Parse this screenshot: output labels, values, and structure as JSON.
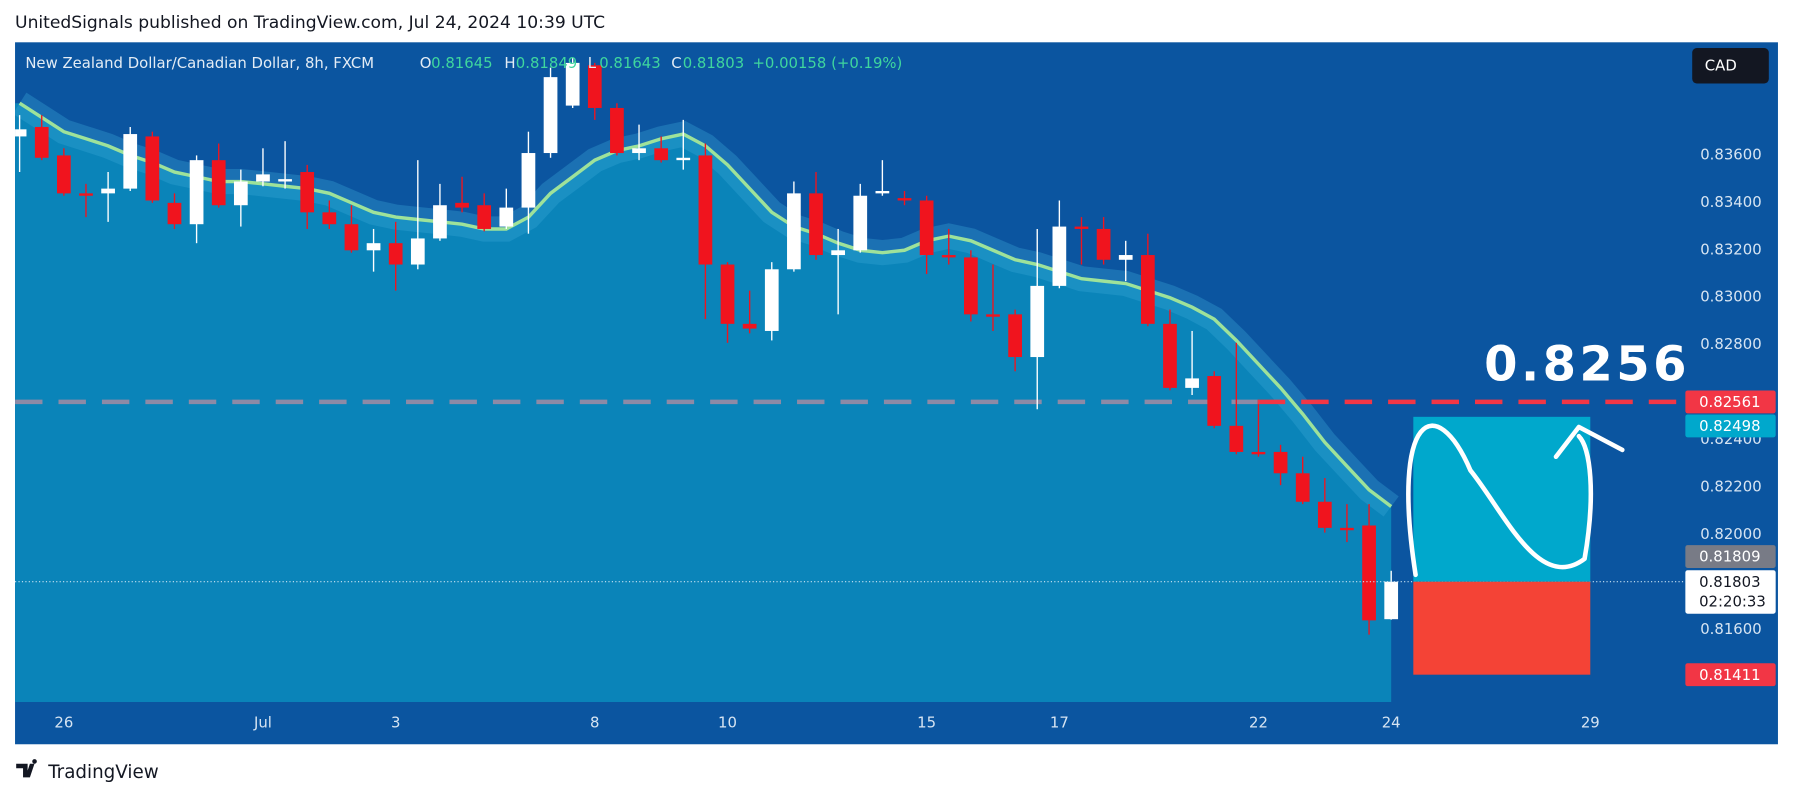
{
  "header": "UnitedSignals published on TradingView.com, Jul 24, 2024 10:39 UTC",
  "footer": "TradingView",
  "currency": "CAD",
  "ohlc_letters": [
    "O",
    "H",
    "L",
    "C"
  ],
  "change_label": "+0.00158 (+0.19%)",
  "annotation": "0.8256",
  "countdown": "02:20:33",
  "levels": {
    "resistance": 0.82561,
    "target": 0.82498,
    "prev_close": 0.81809,
    "stop": 0.81411
  },
  "chart_data": {
    "type": "candlestick",
    "title": "New Zealand Dollar/Canadian Dollar, 8h, FXCM",
    "up_color": "#ffffff",
    "down_color": "#f0141e",
    "categories": [
      null,
      null,
      "26",
      null,
      null,
      null,
      null,
      null,
      null,
      null,
      null,
      "Jul",
      null,
      null,
      null,
      null,
      null,
      "3",
      null,
      null,
      null,
      null,
      null,
      null,
      null,
      null,
      "8",
      null,
      null,
      null,
      null,
      null,
      "10",
      null,
      null,
      null,
      null,
      null,
      null,
      null,
      null,
      "15",
      null,
      null,
      null,
      null,
      null,
      "17",
      null,
      null,
      null,
      null,
      null,
      null,
      null,
      null,
      "22",
      null,
      null,
      null,
      null,
      null,
      "24",
      null,
      null,
      null,
      null,
      null,
      null,
      null,
      null,
      "29",
      null,
      null,
      null,
      null
    ],
    "open": [
      0.8368,
      0.8372,
      0.836,
      0.8344,
      0.8344,
      0.8346,
      0.8368,
      0.834,
      0.8331,
      0.8358,
      0.8339,
      0.8349,
      0.8349,
      0.8353,
      0.8336,
      0.8331,
      0.832,
      0.8323,
      0.8314,
      0.8325,
      0.834,
      0.8339,
      0.833,
      0.8338,
      0.8361,
      0.8381,
      0.8398,
      0.838,
      0.8361,
      0.8363,
      0.8358,
      0.836,
      0.8314,
      0.8289,
      0.8286,
      0.8312,
      0.8344,
      0.8318,
      0.832,
      0.8344,
      0.8342,
      0.8341,
      0.8318,
      0.8317,
      0.8293,
      0.8293,
      0.8275,
      0.8305,
      0.833,
      0.8329,
      0.8316,
      0.8318,
      0.8289,
      0.8262,
      0.8267,
      0.8246,
      0.8235,
      0.8235,
      0.8226,
      0.8214,
      0.8203,
      0.8204,
      0.81645,
      null,
      null,
      null,
      null,
      null,
      null,
      null,
      null,
      null,
      null,
      null,
      null,
      null
    ],
    "high": [
      0.8377,
      0.8377,
      0.8363,
      0.8348,
      0.8353,
      0.8372,
      0.837,
      0.8344,
      0.836,
      0.8365,
      0.8354,
      0.8363,
      0.8366,
      0.8356,
      0.8341,
      0.8339,
      0.8329,
      0.8332,
      0.8358,
      0.8348,
      0.8351,
      0.8344,
      0.8346,
      0.837,
      0.8397,
      0.8401,
      0.8399,
      0.8382,
      0.8373,
      0.8368,
      0.8375,
      0.8365,
      0.8315,
      0.8303,
      0.8315,
      0.8349,
      0.8353,
      0.8329,
      0.8348,
      0.8358,
      0.8345,
      0.8343,
      0.8329,
      0.832,
      0.8314,
      0.8295,
      0.8329,
      0.8341,
      0.8334,
      0.8334,
      0.8324,
      0.8327,
      0.8295,
      0.8286,
      0.8269,
      0.8281,
      0.8257,
      0.8238,
      0.8233,
      0.8224,
      0.8213,
      0.8213,
      0.81849,
      null,
      null,
      null,
      null,
      null,
      null,
      null,
      null,
      null,
      null,
      null,
      null,
      null
    ],
    "low": [
      0.8353,
      0.8358,
      0.8343,
      0.8334,
      0.8332,
      0.8345,
      0.834,
      0.8329,
      0.8323,
      0.8338,
      0.833,
      0.8347,
      0.8346,
      0.8329,
      0.8329,
      0.8319,
      0.8311,
      0.8303,
      0.8312,
      0.8324,
      0.8336,
      0.8328,
      0.8329,
      0.8327,
      0.8359,
      0.838,
      0.8375,
      0.836,
      0.8358,
      0.8357,
      0.8354,
      0.8291,
      0.8281,
      0.8285,
      0.8282,
      0.8311,
      0.8316,
      0.8293,
      0.8319,
      0.8343,
      0.8339,
      0.831,
      0.8314,
      0.829,
      0.8286,
      0.8269,
      0.8253,
      0.8304,
      0.8314,
      0.8314,
      0.8307,
      0.8288,
      0.8261,
      0.8259,
      0.8245,
      0.8234,
      0.8233,
      0.8221,
      0.8213,
      0.8201,
      0.8197,
      0.8158,
      0.81643,
      null,
      null,
      null,
      null,
      null,
      null,
      null,
      null,
      null,
      null,
      null,
      null,
      null
    ],
    "close": [
      0.8371,
      0.8359,
      0.8344,
      0.8343,
      0.8346,
      0.8369,
      0.8341,
      0.8331,
      0.8358,
      0.8339,
      0.8349,
      0.8352,
      0.835,
      0.8336,
      0.8331,
      0.832,
      0.8323,
      0.8314,
      0.8325,
      0.8339,
      0.8338,
      0.8329,
      0.8338,
      0.8361,
      0.8393,
      0.8399,
      0.838,
      0.8361,
      0.8363,
      0.8358,
      0.8359,
      0.8314,
      0.8289,
      0.8287,
      0.8312,
      0.8344,
      0.8318,
      0.832,
      0.8343,
      0.8345,
      0.8341,
      0.8318,
      0.8317,
      0.8293,
      0.8292,
      0.8275,
      0.8305,
      0.833,
      0.8329,
      0.8316,
      0.8318,
      0.8289,
      0.8262,
      0.8266,
      0.8246,
      0.8235,
      0.8234,
      0.8226,
      0.8214,
      0.8203,
      0.8202,
      0.8164,
      0.81803,
      null,
      null,
      null,
      null,
      null,
      null,
      null,
      null,
      null,
      null,
      null,
      null,
      null
    ],
    "ema": {
      "color": "#9ee29a",
      "values": [
        0.8382,
        0.8376,
        0.837,
        0.8367,
        0.8364,
        0.836,
        0.8357,
        0.8353,
        0.8351,
        0.8349,
        0.8349,
        0.8348,
        0.8347,
        0.8346,
        0.8344,
        0.834,
        0.8336,
        0.8334,
        0.8333,
        0.8332,
        0.8331,
        0.8329,
        0.8329,
        0.8334,
        0.8344,
        0.8351,
        0.8358,
        0.8362,
        0.8364,
        0.8367,
        0.8369,
        0.8364,
        0.8356,
        0.8346,
        0.8336,
        0.833,
        0.8327,
        0.8323,
        0.832,
        0.8319,
        0.832,
        0.8324,
        0.8326,
        0.8324,
        0.832,
        0.8316,
        0.8314,
        0.8311,
        0.8308,
        0.8307,
        0.8306,
        0.8303,
        0.83,
        0.8296,
        0.8291,
        0.8282,
        0.8272,
        0.8262,
        0.8251,
        0.8239,
        0.8229,
        0.8219,
        0.8212,
        null,
        null,
        null,
        null,
        null,
        null,
        null,
        null,
        null,
        null,
        null,
        null,
        null
      ]
    },
    "ylim": [
      0.81296,
      0.84072
    ],
    "yticks": [
      {
        "value": 0.816,
        "label": "0.81600"
      },
      {
        "value": 0.82,
        "label": "0.82000"
      },
      {
        "value": 0.822,
        "label": "0.82200"
      },
      {
        "value": 0.824,
        "label": "0.82400"
      },
      {
        "value": 0.828,
        "label": "0.82800"
      },
      {
        "value": 0.83,
        "label": "0.83000"
      },
      {
        "value": 0.832,
        "label": "0.83200"
      },
      {
        "value": 0.834,
        "label": "0.83400"
      },
      {
        "value": 0.836,
        "label": "0.83600"
      }
    ],
    "grid": false
  }
}
